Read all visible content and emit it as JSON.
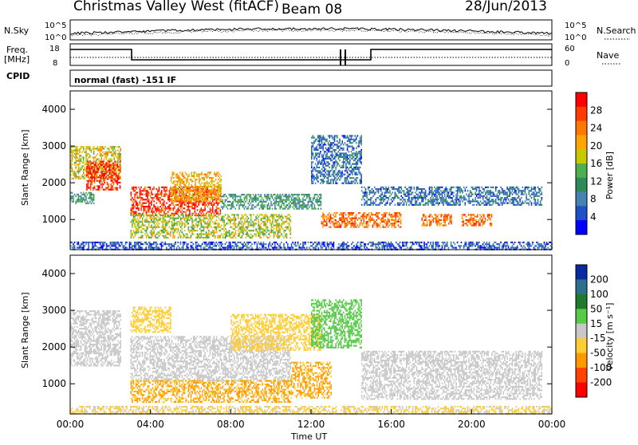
{
  "header": {
    "station": "Christmas Valley West (fitACF)",
    "beam": "Beam 08",
    "date": "28/Jun/2013"
  },
  "noise_panel": {
    "left_label": "N.Sky",
    "right_label": "N.Search",
    "left_ticks": [
      "10^5",
      "10^0"
    ],
    "right_ticks": [
      "10^5",
      "10^0"
    ]
  },
  "freq_panel": {
    "left_label_1": "Freq.",
    "left_label_2": "[MHz]",
    "right_label": "Nave",
    "left_ticks": [
      "18",
      "8"
    ],
    "right_ticks": [
      "60",
      "0"
    ]
  },
  "cpid_panel": {
    "label": "CPID",
    "mode": "normal (fast) -151 IF"
  },
  "power_colorbar": {
    "label": "Power [dB]",
    "ticks": [
      "28",
      "24",
      "20",
      "16",
      "12",
      "8",
      "4"
    ],
    "colors": [
      "#ff0000",
      "#ff3c00",
      "#ff7800",
      "#ffa500",
      "#c8c800",
      "#4caf50",
      "#2e8b57",
      "#4682b4",
      "#1e50c8",
      "#0000ff"
    ]
  },
  "velocity_colorbar": {
    "label": "Velocity [m s⁻¹]",
    "ticks": [
      "200",
      "100",
      "50",
      "15",
      "-15",
      "-50",
      "-100",
      "-200"
    ],
    "colors": [
      "#0a2aa0",
      "#2e6e8e",
      "#1f7a2e",
      "#59c94a",
      "#c8c8c8",
      "#ffcc33",
      "#ff9900",
      "#ff4400",
      "#ff0000"
    ]
  },
  "axes": {
    "ylabel": "Slant Range [km]",
    "yticks": [
      "4000",
      "3000",
      "2000",
      "1000"
    ],
    "xticks": [
      "00:00",
      "04:00",
      "08:00",
      "12:00",
      "16:00",
      "20:00",
      "00:00"
    ],
    "xlabel": "Time UT"
  },
  "chart_data": [
    {
      "type": "heatmap",
      "title": "Power",
      "xlabel": "",
      "ylabel": "Slant Range [km]",
      "x_range_hours": [
        0,
        24
      ],
      "ylim": [
        180,
        4500
      ],
      "zlim": [
        0,
        30
      ],
      "zlabel": "Power [dB]",
      "echo_regions": [
        {
          "t0": 0.0,
          "t1": 2.5,
          "r0": 2100,
          "r1": 3000,
          "power": 18
        },
        {
          "t0": 0.8,
          "t1": 2.5,
          "r0": 1800,
          "r1": 2600,
          "power": 28
        },
        {
          "t0": 0.0,
          "t1": 1.2,
          "r0": 1450,
          "r1": 1750,
          "power": 10
        },
        {
          "t0": 3.0,
          "t1": 7.5,
          "r0": 1100,
          "r1": 1900,
          "power": 28
        },
        {
          "t0": 5.0,
          "t1": 7.5,
          "r0": 1500,
          "r1": 2300,
          "power": 20
        },
        {
          "t0": 3.0,
          "t1": 11.0,
          "r0": 500,
          "r1": 1150,
          "power": 16
        },
        {
          "t0": 7.5,
          "t1": 12.5,
          "r0": 1300,
          "r1": 1700,
          "power": 10
        },
        {
          "t0": 12.0,
          "t1": 14.5,
          "r0": 2000,
          "r1": 3300,
          "power": 6
        },
        {
          "t0": 12.5,
          "t1": 16.5,
          "r0": 800,
          "r1": 1200,
          "power": 24
        },
        {
          "t0": 14.5,
          "t1": 23.5,
          "r0": 1400,
          "r1": 1900,
          "power": 6
        },
        {
          "t0": 17.5,
          "t1": 19.0,
          "r0": 850,
          "r1": 1150,
          "power": 24
        },
        {
          "t0": 19.5,
          "t1": 21.0,
          "r0": 850,
          "r1": 1150,
          "power": 24
        },
        {
          "t0": 0.0,
          "t1": 24.0,
          "r0": 180,
          "r1": 400,
          "power": 4
        }
      ]
    },
    {
      "type": "heatmap",
      "title": "Velocity",
      "xlabel": "Time UT",
      "ylabel": "Slant Range [km]",
      "x_range_hours": [
        0,
        24
      ],
      "ylim": [
        180,
        4500
      ],
      "zlim": [
        -200,
        200
      ],
      "zlabel": "Velocity [m s⁻¹]",
      "echo_regions": [
        {
          "t0": 0.0,
          "t1": 2.5,
          "r0": 1500,
          "r1": 3000,
          "velocity": 0
        },
        {
          "t0": 3.0,
          "t1": 11.0,
          "r0": 1100,
          "r1": 2300,
          "velocity": 0
        },
        {
          "t0": 3.0,
          "t1": 5.0,
          "r0": 2400,
          "r1": 3100,
          "velocity": -60
        },
        {
          "t0": 8.0,
          "t1": 12.5,
          "r0": 1900,
          "r1": 2900,
          "velocity": -40
        },
        {
          "t0": 3.0,
          "t1": 11.0,
          "r0": 500,
          "r1": 1100,
          "velocity": -80
        },
        {
          "t0": 11.0,
          "t1": 13.0,
          "r0": 600,
          "r1": 1600,
          "velocity": -80
        },
        {
          "t0": 12.0,
          "t1": 14.5,
          "r0": 2000,
          "r1": 3300,
          "velocity": 40
        },
        {
          "t0": 14.5,
          "t1": 23.5,
          "r0": 600,
          "r1": 1900,
          "velocity": 0
        },
        {
          "t0": 0.0,
          "t1": 24.0,
          "r0": 180,
          "r1": 400,
          "velocity": -30
        }
      ]
    }
  ]
}
